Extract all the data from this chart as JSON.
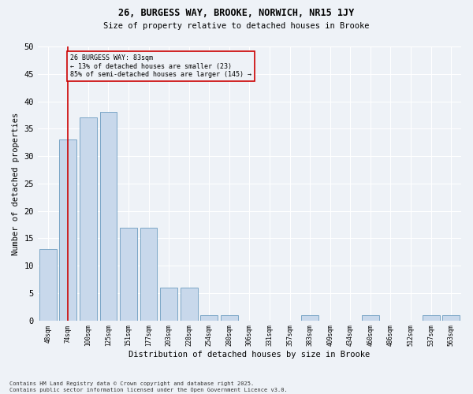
{
  "title1": "26, BURGESS WAY, BROOKE, NORWICH, NR15 1JY",
  "title2": "Size of property relative to detached houses in Brooke",
  "xlabel": "Distribution of detached houses by size in Brooke",
  "ylabel": "Number of detached properties",
  "categories": [
    "48sqm",
    "74sqm",
    "100sqm",
    "125sqm",
    "151sqm",
    "177sqm",
    "203sqm",
    "228sqm",
    "254sqm",
    "280sqm",
    "306sqm",
    "331sqm",
    "357sqm",
    "383sqm",
    "409sqm",
    "434sqm",
    "460sqm",
    "486sqm",
    "512sqm",
    "537sqm",
    "563sqm"
  ],
  "values": [
    13,
    33,
    37,
    38,
    17,
    17,
    6,
    6,
    1,
    1,
    0,
    0,
    0,
    1,
    0,
    0,
    1,
    0,
    0,
    1,
    1
  ],
  "bar_color": "#c8d8eb",
  "bar_edge_color": "#6b9cc0",
  "vline_x": 1,
  "vline_color": "#cc0000",
  "annotation_text": "26 BURGESS WAY: 83sqm\n← 13% of detached houses are smaller (23)\n85% of semi-detached houses are larger (145) →",
  "annotation_box_color": "#cc0000",
  "ylim": [
    0,
    50
  ],
  "yticks": [
    0,
    5,
    10,
    15,
    20,
    25,
    30,
    35,
    40,
    45,
    50
  ],
  "background_color": "#eef2f7",
  "grid_color": "#ffffff",
  "footer1": "Contains HM Land Registry data © Crown copyright and database right 2025.",
  "footer2": "Contains public sector information licensed under the Open Government Licence v3.0."
}
